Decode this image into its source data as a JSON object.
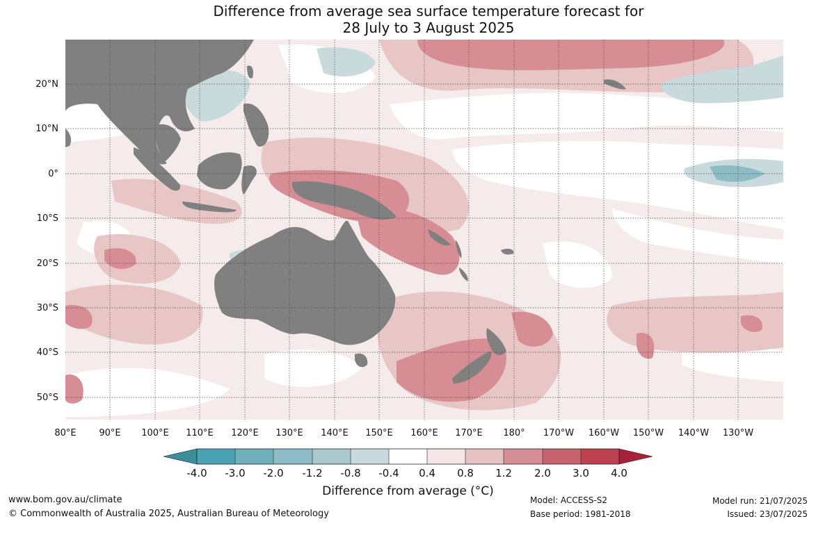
{
  "title": {
    "line1": "Difference from average sea surface temperature forecast for",
    "line2": "28 July to 3 August 2025"
  },
  "map": {
    "lon_labels": [
      "80°E",
      "90°E",
      "100°E",
      "110°E",
      "120°E",
      "130°E",
      "140°E",
      "150°E",
      "160°E",
      "170°E",
      "180°",
      "170°W",
      "160°W",
      "150°W",
      "140°W",
      "130°W"
    ],
    "lat_labels": [
      "20°N",
      "10°N",
      "0°",
      "10°S",
      "20°S",
      "30°S",
      "40°S",
      "50°S"
    ],
    "land_color": "#808080",
    "grid": true
  },
  "colorbar": {
    "ticks": [
      "-4.0",
      "-3.0",
      "-2.0",
      "-1.2",
      "-0.8",
      "-0.4",
      "0.4",
      "0.8",
      "1.2",
      "2.0",
      "3.0",
      "4.0"
    ],
    "colors": [
      "#3a8f9a",
      "#4aa3b3",
      "#6fb0bc",
      "#8ebcc6",
      "#a9c9ce",
      "#c9dadc",
      "#ffffff",
      "#f4e6e6",
      "#e6c2c2",
      "#d68d93",
      "#c8626c",
      "#bd4150",
      "#a8203a"
    ],
    "title": "Difference from average (°C)"
  },
  "footer": {
    "website": "www.bom.gov.au/climate",
    "copyright": "© Commonwealth of Australia 2025, Australian Bureau of Meteorology",
    "model": "Model: ACCESS-S2",
    "base_period": "Base period: 1981-2018",
    "model_run": "Model run: 21/07/2025",
    "issued": "Issued: 23/07/2025"
  }
}
